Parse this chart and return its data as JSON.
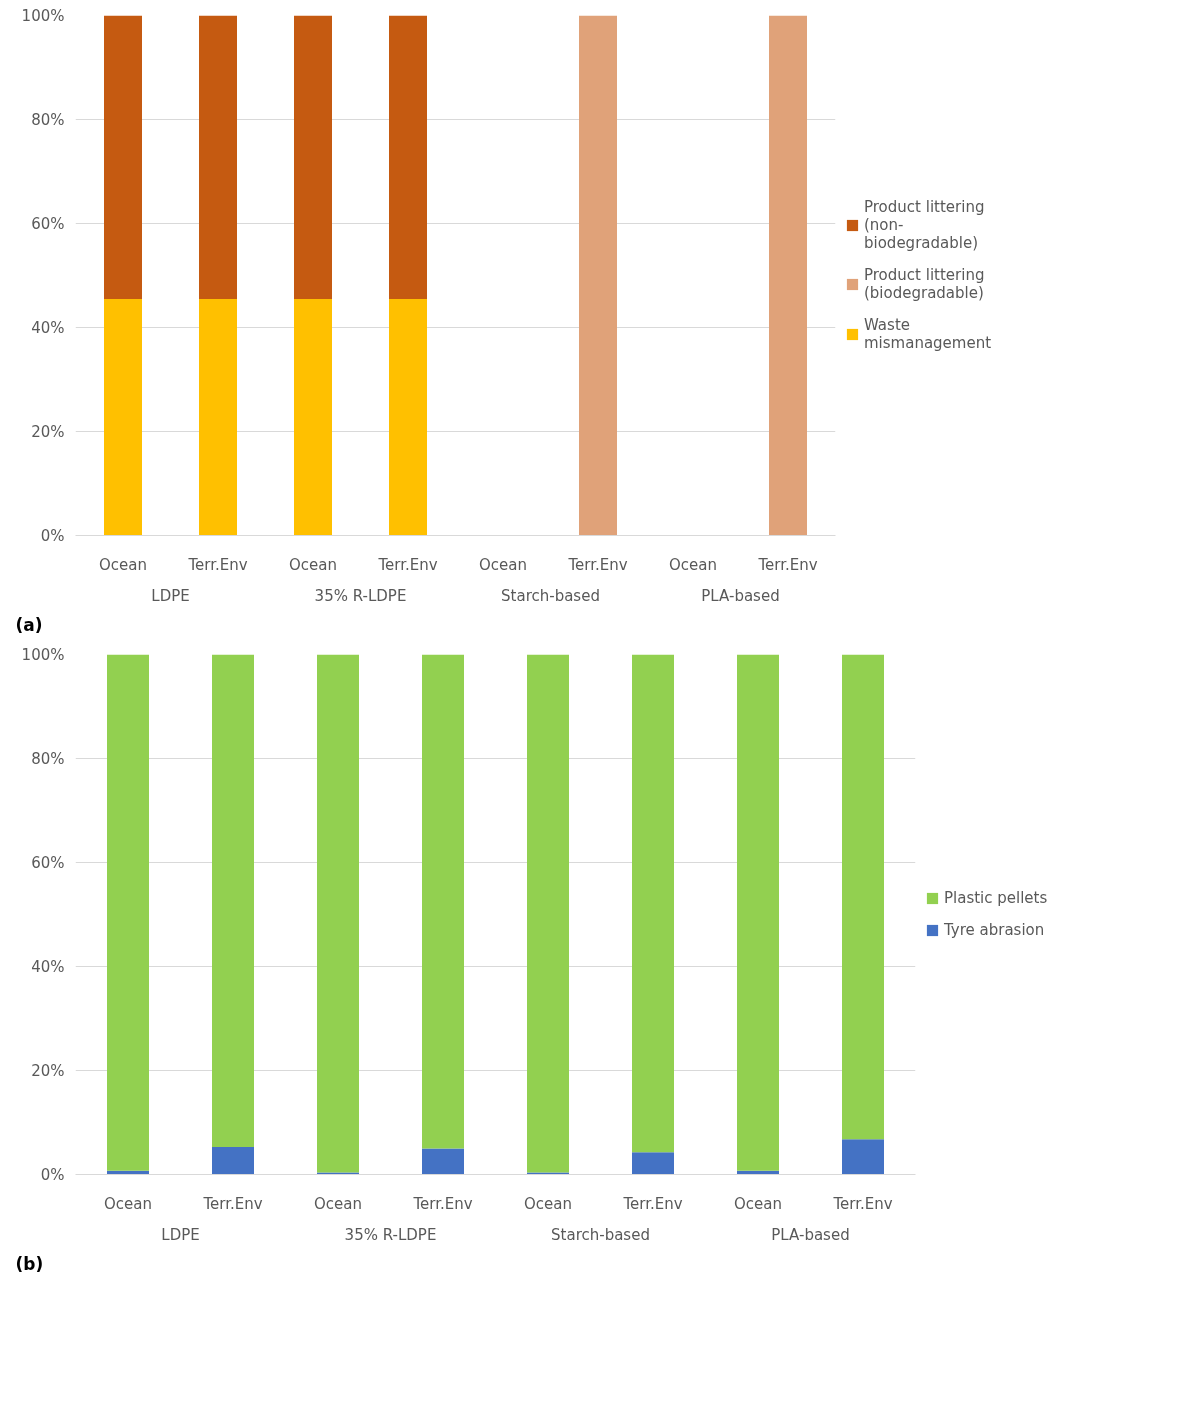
{
  "chart_data": [
    {
      "type": "bar",
      "stacked": true,
      "categories": [
        "Ocean",
        "Terr.Env",
        "Ocean",
        "Terr.Env",
        "Ocean",
        "Terr.Env",
        "Ocean",
        "Terr.Env"
      ],
      "annotations": [
        "(a)",
        "LDPE",
        "35% R-LDPE",
        "Starch-based",
        "PLA-based"
      ],
      "ylim": [
        0,
        100
      ],
      "yticks": [
        {
          "value": 0,
          "label": "0%"
        },
        {
          "value": 20,
          "label": "20%"
        },
        {
          "value": 40,
          "label": "40%"
        },
        {
          "value": 60,
          "label": "60%"
        },
        {
          "value": 80,
          "label": "80%"
        },
        {
          "value": 100,
          "label": "100%"
        }
      ],
      "grid": "y",
      "legend": "right",
      "series": [
        {
          "name": "Waste mismanagement",
          "color": "#ffc000",
          "values": [
            45.5,
            45.5,
            45.5,
            45.5,
            0,
            0,
            0,
            0
          ]
        },
        {
          "name": "Product littering (biodegradable)",
          "color": "#e0a279",
          "values": [
            0,
            0,
            0,
            0,
            0,
            100,
            0,
            100
          ]
        },
        {
          "name": "Product littering (non-biodegradable)",
          "color": "#c55a11",
          "values": [
            54.5,
            54.5,
            54.5,
            54.5,
            0,
            0,
            0,
            0
          ]
        }
      ]
    },
    {
      "type": "bar",
      "stacked": true,
      "categories": [
        "Ocean",
        "Terr.Env",
        "Ocean",
        "Terr.Env",
        "Ocean",
        "Terr.Env",
        "Ocean",
        "Terr.Env"
      ],
      "annotations": [
        "(b)",
        "LDPE",
        "35% R-LDPE",
        "Starch-based",
        "PLA-based"
      ],
      "ylim": [
        0,
        100
      ],
      "yticks": [
        {
          "value": 0,
          "label": "0%"
        },
        {
          "value": 20,
          "label": "20%"
        },
        {
          "value": 40,
          "label": "40%"
        },
        {
          "value": 60,
          "label": "60%"
        },
        {
          "value": 80,
          "label": "80%"
        },
        {
          "value": 100,
          "label": "100%"
        }
      ],
      "grid": "y",
      "legend": "right",
      "series": [
        {
          "name": "Tyre abrasion",
          "color": "#4472c4",
          "values": [
            0.7,
            5.3,
            0.4,
            5.0,
            0.4,
            4.3,
            0.7,
            6.8
          ]
        },
        {
          "name": "Plastic pellets",
          "color": "#92d050",
          "values": [
            99.3,
            94.7,
            99.6,
            95.0,
            99.6,
            95.7,
            99.3,
            93.2
          ]
        }
      ]
    }
  ]
}
